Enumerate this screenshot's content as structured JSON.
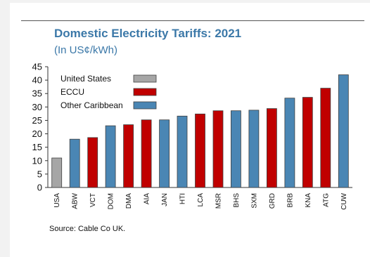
{
  "title": "Domestic Electricity Tariffs: 2021",
  "subtitle": "(In US¢/kWh)",
  "source": "Source: Cable Co UK.",
  "chart_data": {
    "type": "bar",
    "title": "Domestic Electricity Tariffs: 2021",
    "subtitle": "(In US¢/kWh)",
    "xlabel": "",
    "ylabel": "",
    "ylim": [
      0,
      45
    ],
    "yticks": [
      0,
      5,
      10,
      15,
      20,
      25,
      30,
      35,
      40,
      45
    ],
    "grid": false,
    "legend_position": "top-left",
    "groups": [
      {
        "name": "United States",
        "color": "#a6a6a6"
      },
      {
        "name": "ECCU",
        "color": "#c00000"
      },
      {
        "name": "Other Caribbean",
        "color": "#4a86b4"
      }
    ],
    "categories": [
      "USA",
      "ABW",
      "VCT",
      "DOM",
      "DMA",
      "AIA",
      "JAN",
      "HTI",
      "LCA",
      "MSR",
      "BHS",
      "SXM",
      "GRD",
      "BRB",
      "KNA",
      "ATG",
      "CUW"
    ],
    "values": [
      11.0,
      18.0,
      18.6,
      23.0,
      23.4,
      25.2,
      25.2,
      26.6,
      27.4,
      28.6,
      28.6,
      28.8,
      29.4,
      33.3,
      33.6,
      37.0,
      42.0
    ],
    "bar_groups": [
      0,
      2,
      1,
      2,
      1,
      1,
      2,
      2,
      1,
      1,
      2,
      2,
      1,
      2,
      1,
      1,
      2
    ]
  }
}
